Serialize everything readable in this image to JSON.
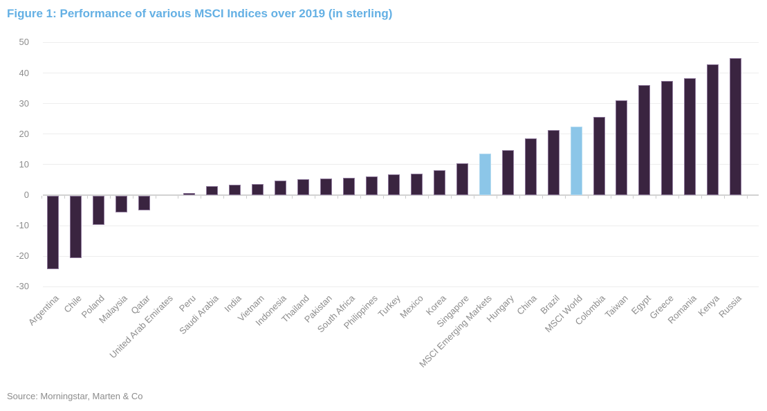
{
  "figure": {
    "title": "Figure 1: Performance of various MSCI Indices over 2019 (in sterling)",
    "source": "Source: Morningstar, Marten & Co"
  },
  "colors": {
    "title": "#64B0E4",
    "bar": "#3A2440",
    "bar_border": "#8F7A9C",
    "highlight": "#8CC6E8",
    "highlight_border": "#B3DAF0",
    "gridline": "#EDEDED",
    "axis": "#D2D2D2",
    "tick": "#CCCCCC",
    "label": "#8C8C8C",
    "source_text": "#8C8C8C"
  },
  "chart_data": {
    "type": "bar",
    "title": "Figure 1: Performance of various MSCI Indices over 2019 (in sterling)",
    "xlabel": "",
    "ylabel": "",
    "ylim": [
      -30,
      50
    ],
    "yticks": [
      50,
      40,
      30,
      20,
      10,
      0,
      -10,
      -20,
      -30
    ],
    "grid": "horizontal",
    "legend": "none",
    "categories": [
      "Argentina",
      "Chile",
      "Poland",
      "Malaysia",
      "Qatar",
      "United Arab Emirates",
      "Peru",
      "Saudi Arabia",
      "India",
      "Vietnam",
      "Indonesia",
      "Thailand",
      "Pakistan",
      "South Africa",
      "Philippines",
      "Turkey",
      "Mexico",
      "Korea",
      "Singapore",
      "MSCI Emerging Markets",
      "Hungary",
      "China",
      "Brazil",
      "MSCI World",
      "Colombia",
      "Taiwan",
      "Egypt",
      "Greece",
      "Romania",
      "Kenya",
      "Russia"
    ],
    "values": [
      -24,
      -20.3,
      -9.5,
      -5.5,
      -4.7,
      0,
      0.6,
      3.0,
      3.3,
      3.6,
      4.8,
      5.2,
      5.4,
      5.7,
      6.1,
      6.7,
      7.1,
      8.1,
      10.5,
      13.7,
      14.7,
      18.5,
      21.3,
      22.5,
      25.7,
      31.0,
      36.0,
      37.4,
      38.3,
      42.8,
      44.9
    ],
    "highlighted": [
      "MSCI Emerging Markets",
      "MSCI World"
    ],
    "bar_color_hex": "#3A2440",
    "highlight_color_hex": "#8CC6E8"
  }
}
